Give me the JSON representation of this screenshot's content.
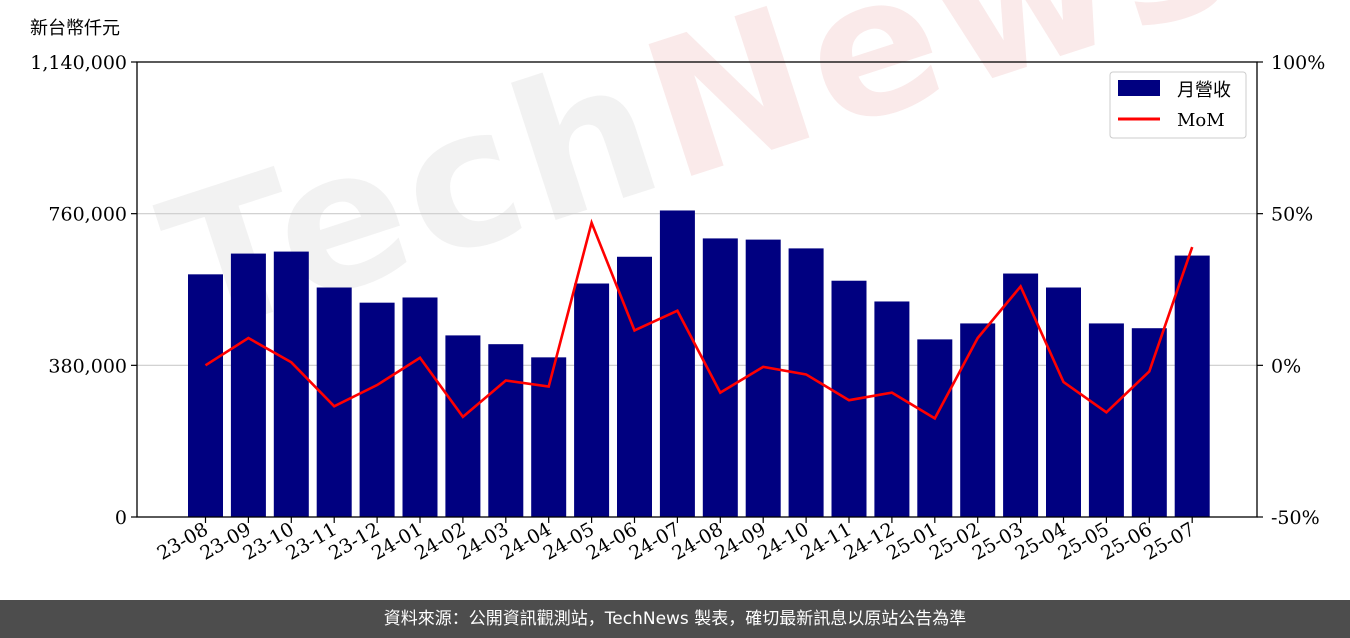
{
  "chart_data": {
    "type": "bar",
    "unit_label": "新台幣仟元",
    "categories": [
      "23-08",
      "23-09",
      "23-10",
      "23-11",
      "23-12",
      "24-01",
      "24-02",
      "24-03",
      "24-04",
      "24-05",
      "24-06",
      "24-07",
      "24-08",
      "24-09",
      "24-10",
      "24-11",
      "24-12",
      "25-01",
      "25-02",
      "25-03",
      "25-04",
      "25-05",
      "25-06",
      "25-07"
    ],
    "series": [
      {
        "name": "月營收",
        "axis": "left",
        "type": "bar",
        "color": "#000080",
        "values": [
          608000,
          660000,
          665000,
          575000,
          537000,
          550000,
          455000,
          433000,
          400000,
          585000,
          652000,
          768000,
          698000,
          695000,
          673000,
          592000,
          540000,
          445000,
          485000,
          610000,
          575000,
          485000,
          473000,
          655000
        ]
      },
      {
        "name": "MoM",
        "axis": "right",
        "type": "line",
        "color": "#ff0000",
        "values": [
          0.0,
          9.0,
          1.0,
          -13.5,
          -6.5,
          2.5,
          -17.0,
          -5.0,
          -7.0,
          47.0,
          11.5,
          18.0,
          -9.0,
          -0.5,
          -3.0,
          -11.5,
          -9.0,
          -17.5,
          9.0,
          26.0,
          -5.5,
          -15.5,
          -2.0,
          39.0
        ]
      }
    ],
    "y_left": {
      "ylim": [
        0,
        1140000
      ],
      "ticks": [
        "0",
        "380,000",
        "760,000",
        "1,140,000"
      ],
      "tick_values": [
        0,
        380000,
        760000,
        1140000
      ]
    },
    "y_right": {
      "ylim": [
        -50,
        100
      ],
      "ticks": [
        "-50%",
        "0%",
        "50%",
        "100%"
      ],
      "tick_values": [
        -50,
        0,
        50,
        100
      ]
    },
    "grid": "horizontal",
    "legend_position": "top-right",
    "title": "",
    "xlabel": "",
    "ylabel": ""
  },
  "watermark_text": "TechNews",
  "footer_text": "資料來源：公開資訊觀測站，TechNews 製表，確切最新訊息以原站公告為準"
}
